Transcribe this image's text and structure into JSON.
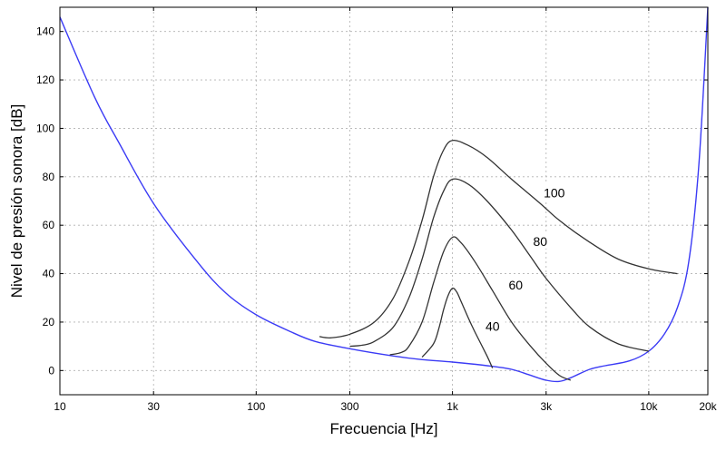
{
  "chart_data": {
    "type": "line",
    "xlabel": "Frecuencia [Hz]",
    "ylabel": "Nivel de presión sonora [dB]",
    "xscale": "log",
    "xlim": [
      10,
      20000
    ],
    "ylim": [
      -10,
      150
    ],
    "grid": true,
    "xticks": [
      {
        "value": 10,
        "label": "10"
      },
      {
        "value": 30,
        "label": "30"
      },
      {
        "value": 100,
        "label": "100"
      },
      {
        "value": 300,
        "label": "300"
      },
      {
        "value": 1000,
        "label": "1k"
      },
      {
        "value": 3000,
        "label": "3k"
      },
      {
        "value": 10000,
        "label": "10k"
      },
      {
        "value": 20000,
        "label": "20k"
      }
    ],
    "yticks": [
      {
        "value": 0,
        "label": "0"
      },
      {
        "value": 20,
        "label": "20"
      },
      {
        "value": 40,
        "label": "40"
      },
      {
        "value": 60,
        "label": "60"
      },
      {
        "value": 80,
        "label": "80"
      },
      {
        "value": 100,
        "label": "100"
      },
      {
        "value": 120,
        "label": "120"
      },
      {
        "value": 140,
        "label": "140"
      }
    ],
    "series": [
      {
        "color": "#3b3bf5",
        "x": [
          10,
          15,
          20,
          30,
          50,
          70,
          100,
          150,
          200,
          300,
          500,
          700,
          1000,
          1500,
          2000,
          2500,
          3000,
          3500,
          4000,
          5000,
          6000,
          8000,
          10000,
          12000,
          14000,
          16000,
          18000,
          20000
        ],
        "y": [
          146,
          113,
          94,
          69,
          45,
          32,
          23,
          16,
          12,
          9,
          6,
          4.5,
          3.5,
          2,
          0.5,
          -2,
          -4,
          -4.5,
          -3,
          0.5,
          2,
          4,
          8,
          15,
          26,
          45,
          85,
          150
        ]
      },
      {
        "name": "100",
        "color": "#333333",
        "x": [
          210,
          240,
          300,
          400,
          500,
          600,
          700,
          800,
          900,
          1000,
          1200,
          1500,
          2000,
          2800,
          3500,
          5000,
          7000,
          10000,
          14000
        ],
        "y": [
          14,
          13.5,
          15,
          20,
          30,
          45,
          62,
          80,
          91,
          95,
          93,
          88,
          79,
          69,
          62,
          53,
          46,
          42,
          40
        ]
      },
      {
        "name": "80",
        "color": "#333333",
        "x": [
          300,
          350,
          400,
          500,
          600,
          700,
          800,
          900,
          1000,
          1200,
          1500,
          2000,
          2500,
          3000,
          4000,
          5000,
          7000,
          10000
        ],
        "y": [
          10,
          10.5,
          12,
          18,
          30,
          46,
          63,
          74,
          79,
          77,
          70,
          58,
          47,
          38,
          26,
          18,
          11,
          8
        ]
      },
      {
        "name": "60",
        "color": "#333333",
        "x": [
          480,
          550,
          600,
          700,
          800,
          900,
          1000,
          1100,
          1300,
          1600,
          2000,
          2500,
          3000,
          3500,
          4000
        ],
        "y": [
          6.5,
          7.5,
          10,
          20,
          36,
          49,
          55,
          53,
          45,
          33,
          20,
          10,
          3,
          -2,
          -4
        ]
      },
      {
        "name": "40",
        "color": "#333333",
        "x": [
          700,
          800,
          850,
          900,
          950,
          1000,
          1050,
          1100,
          1200,
          1300,
          1500,
          1600
        ],
        "y": [
          5.5,
          11,
          17,
          25,
          31,
          34,
          32.5,
          29,
          22,
          16,
          6,
          1
        ]
      }
    ],
    "annotations": [
      {
        "text": "100",
        "x": 3300,
        "y": 73
      },
      {
        "text": "80",
        "x": 2800,
        "y": 53
      },
      {
        "text": "60",
        "x": 2100,
        "y": 35
      },
      {
        "text": "40",
        "x": 1600,
        "y": 18
      }
    ]
  }
}
